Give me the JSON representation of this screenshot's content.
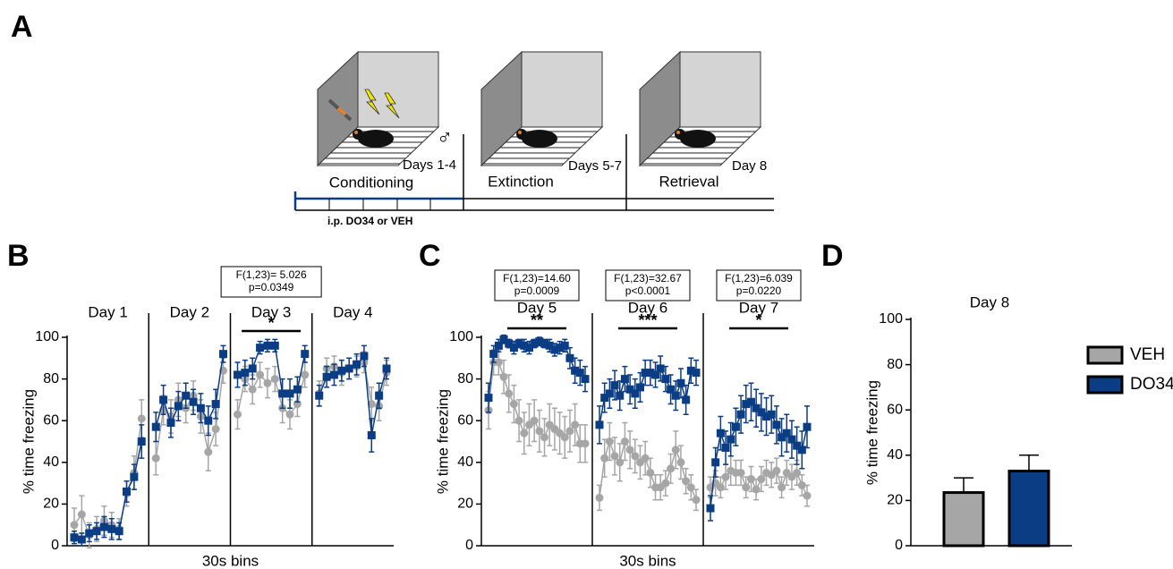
{
  "panel_labels": [
    "A",
    "B",
    "C",
    "D"
  ],
  "diagram": {
    "stages": [
      {
        "label": "Conditioning",
        "days": "Days 1-4"
      },
      {
        "label": "Extinction",
        "days": "Days 5-7"
      },
      {
        "label": "Retrieval",
        "days": "Day 8"
      }
    ],
    "injection": "i.p. DO34 or VEH",
    "sex": "♂"
  },
  "chart_data": [
    {
      "type": "line",
      "ylabel": "% time freezing",
      "xlabel": "30s bins",
      "ylim": [
        0,
        100
      ],
      "yticks": [
        0,
        20,
        40,
        60,
        80,
        100
      ],
      "groups": [
        {
          "title": "Day 1",
          "series": [
            {
              "color": "#a6a6a6",
              "values": [
                10,
                15,
                5,
                8,
                12,
                10,
                8,
                25,
                35,
                61
              ],
              "errors": [
                8,
                9,
                6,
                6,
                7,
                6,
                5,
                6,
                8,
                9
              ]
            },
            {
              "color": "#0b3d85",
              "values": [
                4,
                3,
                6,
                7,
                9,
                8,
                7,
                26,
                33,
                50
              ],
              "errors": [
                3,
                3,
                4,
                4,
                5,
                5,
                4,
                5,
                6,
                8
              ]
            }
          ]
        },
        {
          "title": "Day 2",
          "series": [
            {
              "color": "#a6a6a6",
              "values": [
                42,
                65,
                62,
                70,
                66,
                72,
                62,
                45,
                56,
                84
              ],
              "errors": [
                8,
                7,
                8,
                8,
                7,
                7,
                8,
                9,
                8,
                6
              ]
            },
            {
              "color": "#0b3d85",
              "values": [
                57,
                70,
                59,
                67,
                72,
                69,
                66,
                60,
                68,
                92
              ],
              "errors": [
                7,
                7,
                7,
                7,
                6,
                6,
                7,
                7,
                7,
                4
              ]
            }
          ]
        },
        {
          "title": "Day 3",
          "stat": [
            "F(1,23)= 5.026",
            "p=0.0349"
          ],
          "sig": "*",
          "series": [
            {
              "color": "#a6a6a6",
              "values": [
                63,
                80,
                75,
                82,
                78,
                80,
                66,
                63,
                68,
                82
              ],
              "errors": [
                7,
                6,
                7,
                6,
                7,
                6,
                7,
                7,
                6,
                6
              ]
            },
            {
              "color": "#0b3d85",
              "values": [
                82,
                83,
                85,
                95,
                96,
                96,
                73,
                73,
                75,
                92
              ],
              "errors": [
                6,
                6,
                5,
                3,
                3,
                3,
                7,
                7,
                6,
                4
              ]
            }
          ]
        },
        {
          "title": "Day 4",
          "series": [
            {
              "color": "#a6a6a6",
              "values": [
                73,
                85,
                86,
                83,
                85,
                86,
                88,
                68,
                67,
                83
              ],
              "errors": [
                6,
                5,
                5,
                6,
                5,
                5,
                5,
                8,
                7,
                6
              ]
            },
            {
              "color": "#0b3d85",
              "values": [
                72,
                81,
                82,
                84,
                85,
                87,
                91,
                53,
                72,
                85
              ],
              "errors": [
                5,
                5,
                5,
                5,
                5,
                5,
                5,
                8,
                6,
                5
              ]
            }
          ]
        }
      ]
    },
    {
      "type": "line",
      "ylabel": "% time freezing",
      "xlabel": "30s bins",
      "ylim": [
        0,
        100
      ],
      "yticks": [
        0,
        20,
        40,
        60,
        80,
        100
      ],
      "groups": [
        {
          "title": "Day 5",
          "stat": [
            "F(1,23)=14.60",
            "p=0.0009"
          ],
          "sig": "**",
          "series": [
            {
              "color": "#a6a6a6",
              "values": [
                65,
                88,
                88,
                81,
                73,
                68,
                60,
                54,
                58,
                60,
                55,
                52,
                58,
                56,
                54,
                52,
                55,
                58,
                49,
                49
              ],
              "errors": [
                9,
                6,
                6,
                8,
                9,
                9,
                10,
                10,
                10,
                10,
                10,
                9,
                10,
                10,
                10,
                10,
                10,
                10,
                9,
                9
              ]
            },
            {
              "color": "#0b3d85",
              "values": [
                71,
                92,
                96,
                99,
                97,
                95,
                97,
                96,
                95,
                97,
                98,
                97,
                96,
                94,
                95,
                96,
                90,
                84,
                83,
                80
              ],
              "errors": [
                7,
                4,
                3,
                2,
                2,
                3,
                2,
                3,
                3,
                2,
                2,
                2,
                3,
                3,
                3,
                3,
                5,
                6,
                6,
                6
              ]
            }
          ]
        },
        {
          "title": "Day 6",
          "stat": [
            "F(1,23)=32.67",
            "p<0.0001"
          ],
          "sig": "***",
          "series": [
            {
              "color": "#a6a6a6",
              "values": [
                23,
                42,
                50,
                43,
                40,
                50,
                46,
                43,
                40,
                42,
                35,
                28,
                28,
                30,
                37,
                46,
                40,
                31,
                28,
                22
              ],
              "errors": [
                6,
                9,
                9,
                9,
                9,
                9,
                9,
                8,
                8,
                8,
                7,
                6,
                6,
                6,
                7,
                9,
                8,
                6,
                6,
                5
              ]
            },
            {
              "color": "#0b3d85",
              "values": [
                58,
                71,
                73,
                77,
                72,
                80,
                75,
                73,
                76,
                83,
                83,
                82,
                85,
                80,
                75,
                72,
                78,
                70,
                84,
                83
              ],
              "errors": [
                9,
                7,
                7,
                7,
                7,
                6,
                7,
                7,
                7,
                6,
                6,
                6,
                6,
                6,
                7,
                7,
                7,
                7,
                6,
                6
              ]
            }
          ]
        },
        {
          "title": "Day 7",
          "stat": [
            "F(1,23)=6.039",
            "p=0.0220"
          ],
          "sig": "*",
          "series": [
            {
              "color": "#a6a6a6",
              "values": [
                28,
                30,
                28,
                33,
                36,
                35,
                35,
                28,
                32,
                27,
                32,
                35,
                34,
                36,
                28,
                35,
                33,
                35,
                29,
                24
              ],
              "errors": [
                5,
                6,
                5,
                6,
                7,
                6,
                6,
                5,
                6,
                5,
                6,
                6,
                6,
                6,
                5,
                6,
                6,
                6,
                5,
                5
              ]
            },
            {
              "color": "#0b3d85",
              "values": [
                18,
                40,
                54,
                47,
                51,
                57,
                63,
                68,
                69,
                66,
                64,
                62,
                63,
                58,
                52,
                54,
                51,
                48,
                46,
                57
              ],
              "errors": [
                6,
                7,
                8,
                8,
                8,
                9,
                9,
                9,
                9,
                9,
                9,
                9,
                9,
                9,
                9,
                9,
                9,
                9,
                9,
                10
              ]
            }
          ]
        }
      ]
    },
    {
      "type": "bar",
      "title": "Day 8",
      "ylabel": "% time freezing",
      "ylim": [
        0,
        100
      ],
      "yticks": [
        0,
        20,
        40,
        60,
        80,
        100
      ],
      "series": [
        {
          "name": "VEH",
          "color": "#a6a6a6",
          "values": [
            23.5
          ],
          "errors": [
            6.5
          ]
        },
        {
          "name": "DO34",
          "color": "#0b3d85",
          "values": [
            33
          ],
          "errors": [
            7
          ]
        }
      ]
    }
  ]
}
